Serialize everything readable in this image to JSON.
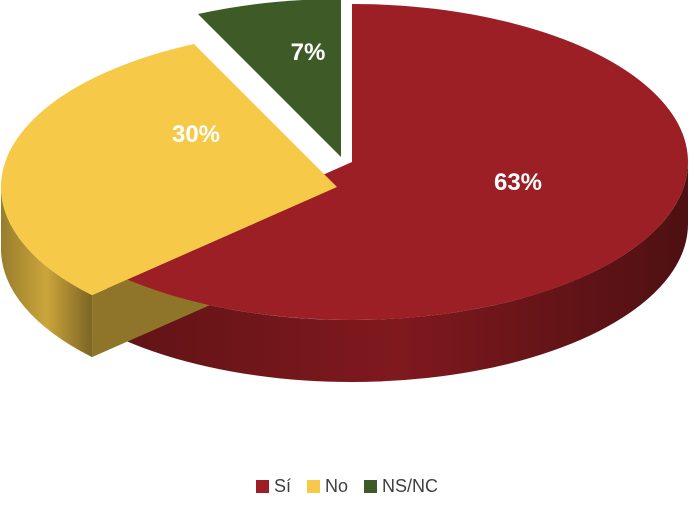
{
  "chart_data": {
    "type": "pie",
    "title": "",
    "style": "3d-exploded",
    "legend_position": "bottom",
    "slices": [
      {
        "label": "Sí",
        "value": 63,
        "display": "63%",
        "color": "#9b1f24"
      },
      {
        "label": "No",
        "value": 30,
        "display": "30%",
        "color": "#f7c948"
      },
      {
        "label": "NS/NC",
        "value": 7,
        "display": "7%",
        "color": "#3d5a27"
      }
    ]
  }
}
